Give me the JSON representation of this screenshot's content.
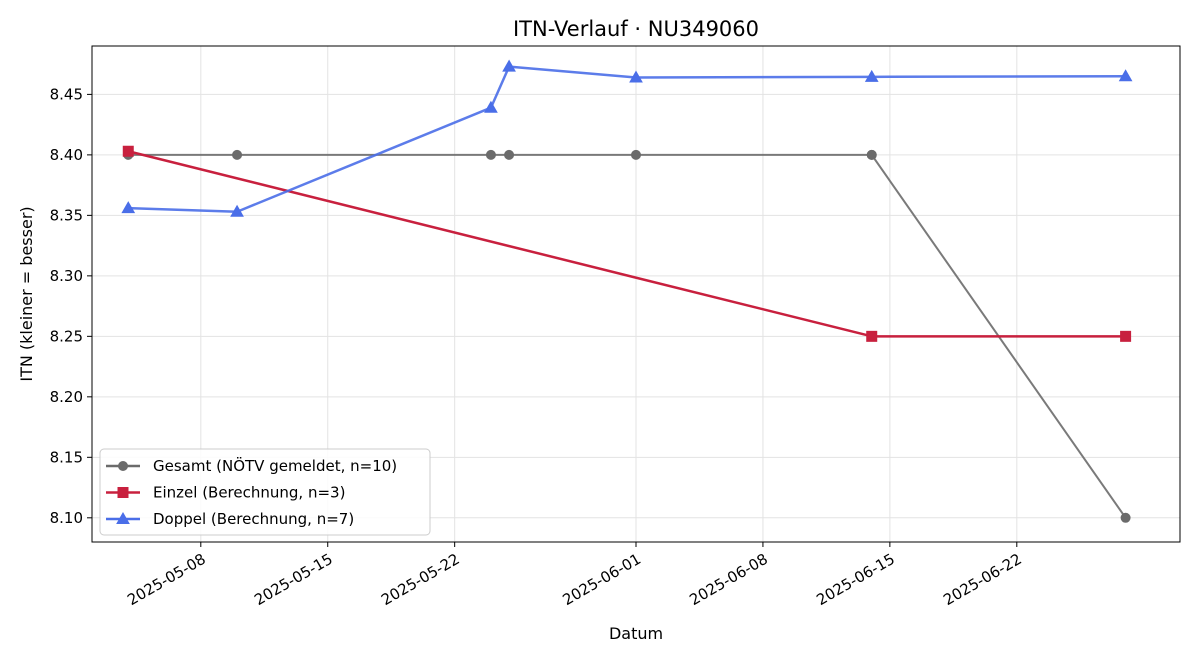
{
  "chart_data": {
    "type": "line",
    "title": "ITN-Verlauf · NU349060",
    "xlabel": "Datum",
    "ylabel": "ITN  (kleiner = besser)",
    "xlim": [
      "2025-05-02",
      "2025-07-01"
    ],
    "ylim": [
      8.08,
      8.49
    ],
    "x_ticks": [
      "2025-05-08",
      "2025-05-15",
      "2025-05-22",
      "2025-06-01",
      "2025-06-08",
      "2025-06-15",
      "2025-06-22"
    ],
    "y_ticks": [
      8.1,
      8.15,
      8.2,
      8.25,
      8.3,
      8.35,
      8.4,
      8.45
    ],
    "y_tick_labels": [
      "8.10",
      "8.15",
      "8.20",
      "8.25",
      "8.30",
      "8.35",
      "8.40",
      "8.45"
    ],
    "grid": true,
    "legend_position": "lower-left",
    "series": [
      {
        "name": "Gesamt (NÖTV gemeldet, n=10)",
        "color": "#6b6b6b",
        "marker": "circle",
        "points": [
          {
            "x": "2025-05-04",
            "y": 8.4
          },
          {
            "x": "2025-05-10",
            "y": 8.4
          },
          {
            "x": "2025-05-24",
            "y": 8.4
          },
          {
            "x": "2025-05-25",
            "y": 8.4
          },
          {
            "x": "2025-06-01",
            "y": 8.4
          },
          {
            "x": "2025-06-14",
            "y": 8.4
          },
          {
            "x": "2025-06-14",
            "y": 8.4
          },
          {
            "x": "2025-06-28",
            "y": 8.1
          }
        ]
      },
      {
        "name": "Einzel (Berechnung, n=3)",
        "color": "#c8203e",
        "marker": "square",
        "points": [
          {
            "x": "2025-05-04",
            "y": 8.403
          },
          {
            "x": "2025-06-14",
            "y": 8.25
          },
          {
            "x": "2025-06-28",
            "y": 8.25
          }
        ]
      },
      {
        "name": "Doppel (Berechnung, n=7)",
        "color": "#4a6ee8",
        "marker": "triangle",
        "points": [
          {
            "x": "2025-05-04",
            "y": 8.356
          },
          {
            "x": "2025-05-10",
            "y": 8.353
          },
          {
            "x": "2025-05-24",
            "y": 8.439
          },
          {
            "x": "2025-05-25",
            "y": 8.473
          },
          {
            "x": "2025-06-01",
            "y": 8.464
          },
          {
            "x": "2025-06-14",
            "y": 8.4645
          },
          {
            "x": "2025-06-28",
            "y": 8.465
          }
        ]
      }
    ]
  }
}
